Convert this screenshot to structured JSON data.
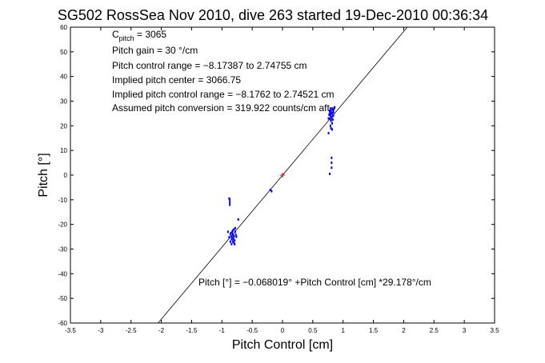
{
  "chart_data": {
    "type": "scatter",
    "title": "SG502 RossSea Nov 2010, dive 263 started 19-Dec-2010 00:36:34",
    "xlabel": "Pitch Control [cm]",
    "ylabel": "Pitch [°]",
    "xlim": [
      -3.5,
      3.5
    ],
    "ylim": [
      -60,
      60
    ],
    "xticks": [
      -3.5,
      -3,
      -2.5,
      -2,
      -1.5,
      -1,
      -0.5,
      0,
      0.5,
      1,
      1.5,
      2,
      2.5,
      3,
      3.5
    ],
    "yticks": [
      -60,
      -50,
      -40,
      -30,
      -20,
      -10,
      0,
      10,
      20,
      30,
      40,
      50,
      60
    ],
    "grid": false,
    "annotations": {
      "c_pitch_symbol": "C",
      "c_pitch_sub": "pitch",
      "c_pitch_value": " = 3065",
      "pitch_gain": "Pitch gain = 30 °/cm",
      "pitch_control_range": "Pitch control range = −8.17387 to 2.74755 cm",
      "implied_pitch_center": "Implied pitch center = 3066.75",
      "implied_control_range": "Implied pitch control range = −8.1762 to 2.74521 cm",
      "assumed_conversion": "Assumed pitch conversion = 319.922 counts/cm aft",
      "fit_equation": "Pitch [°] = −0.068019° +Pitch Control [cm] *29.178°/cm"
    },
    "fit_line": {
      "intercept": -0.068019,
      "slope": 29.178,
      "color": "#000000"
    },
    "center_point": {
      "x": 0,
      "y": 0,
      "color": "#ff0000"
    },
    "series": [
      {
        "color": "#0000ff",
        "points": [
          [
            0.78,
            25
          ],
          [
            0.8,
            26
          ],
          [
            0.82,
            27
          ],
          [
            0.84,
            25.5
          ],
          [
            0.79,
            24
          ],
          [
            0.81,
            23.5
          ],
          [
            0.83,
            26.5
          ],
          [
            0.77,
            24.5
          ],
          [
            0.85,
            27
          ],
          [
            0.8,
            22
          ],
          [
            0.82,
            21
          ],
          [
            0.79,
            20
          ],
          [
            0.81,
            23
          ],
          [
            0.83,
            24
          ],
          [
            0.78,
            26
          ],
          [
            0.84,
            26
          ],
          [
            0.86,
            27.5
          ],
          [
            0.76,
            23
          ],
          [
            0.8,
            19
          ],
          [
            0.82,
            18.5
          ],
          [
            0.81,
            25
          ],
          [
            0.79,
            27
          ],
          [
            0.83,
            22.5
          ],
          [
            0.8,
            24.8
          ],
          [
            0.82,
            25.2
          ],
          [
            0.84,
            24.2
          ],
          [
            0.78,
            22.8
          ],
          [
            0.81,
            7
          ],
          [
            0.81,
            5
          ],
          [
            0.81,
            3
          ],
          [
            0.78,
            0.5
          ],
          [
            0.76,
            17
          ],
          [
            -0.82,
            -24
          ],
          [
            -0.8,
            -25
          ],
          [
            -0.84,
            -26
          ],
          [
            -0.78,
            -23
          ],
          [
            -0.86,
            -27
          ],
          [
            -0.81,
            -24.5
          ],
          [
            -0.83,
            -25.5
          ],
          [
            -0.79,
            -26.5
          ],
          [
            -0.85,
            -23.5
          ],
          [
            -0.8,
            -27.5
          ],
          [
            -0.82,
            -22.5
          ],
          [
            -0.84,
            -24.8
          ],
          [
            -0.77,
            -24.2
          ],
          [
            -0.88,
            -25.2
          ],
          [
            -0.81,
            -26
          ],
          [
            -0.83,
            -23
          ],
          [
            -0.79,
            -28
          ],
          [
            -0.86,
            -24
          ],
          [
            -0.8,
            -22
          ],
          [
            -0.82,
            -27
          ],
          [
            -0.76,
            -25
          ],
          [
            -0.9,
            -23
          ],
          [
            -0.84,
            -28
          ],
          [
            -0.78,
            -21.5
          ],
          [
            -0.87,
            -10
          ],
          [
            -0.87,
            -11
          ],
          [
            -0.87,
            -12
          ],
          [
            -0.88,
            -9.5
          ],
          [
            -0.73,
            -18
          ],
          [
            -0.2,
            -6
          ],
          [
            -0.18,
            -6.5
          ]
        ]
      }
    ]
  }
}
